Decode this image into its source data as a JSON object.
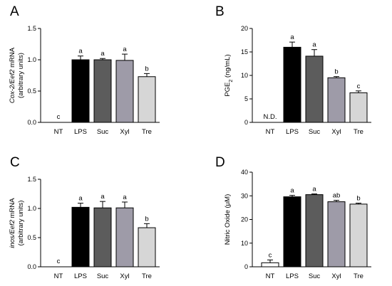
{
  "chart_data": [
    {
      "type": "bar",
      "panel": "A",
      "ylabel_parts": [
        {
          "text": "Cox-2/Eef2",
          "italic": true
        },
        {
          "text": " mRNA",
          "italic": false
        }
      ],
      "ylabel_line2": "(arbitrary units)",
      "categories": [
        "NT",
        "LPS",
        "Suc",
        "Xyl",
        "Tre"
      ],
      "values": [
        0,
        1.0,
        1.0,
        0.99,
        0.73
      ],
      "errors": [
        0,
        0.06,
        0.02,
        0.1,
        0.05
      ],
      "labels": [
        "c",
        "a",
        "a",
        "a",
        "b"
      ],
      "ylim": [
        0,
        1.5
      ],
      "yticks": [
        "0.0",
        "0.5",
        "1.0",
        "1.5"
      ],
      "ytick_values": [
        0,
        0.5,
        1.0,
        1.5
      ],
      "colors": [
        "#ffffff",
        "#000000",
        "#5c5c5c",
        "#9e9ba8",
        "#d6d6d6"
      ]
    },
    {
      "type": "bar",
      "panel": "B",
      "ylabel_parts": [
        {
          "text": "PGE",
          "italic": false
        },
        {
          "text": "2",
          "italic": false,
          "sub": true
        },
        {
          "text": " (ng/mL)",
          "italic": false
        }
      ],
      "ylabel_line2": "",
      "categories": [
        "NT",
        "LPS",
        "Suc",
        "Xyl",
        "Tre"
      ],
      "values": [
        0,
        16.0,
        14.1,
        9.5,
        6.3
      ],
      "errors": [
        0,
        1.1,
        1.4,
        0.25,
        0.4
      ],
      "labels": [
        "N.D.",
        "a",
        "a",
        "b",
        "c"
      ],
      "ylim": [
        0,
        20
      ],
      "yticks": [
        "0",
        "5",
        "10",
        "15",
        "20"
      ],
      "ytick_values": [
        0,
        5,
        10,
        15,
        20
      ],
      "colors": [
        "#ffffff",
        "#000000",
        "#5c5c5c",
        "#9e9ba8",
        "#d6d6d6"
      ]
    },
    {
      "type": "bar",
      "panel": "C",
      "ylabel_parts": [
        {
          "text": "inos/Eef2",
          "italic": true
        },
        {
          "text": " mRNA",
          "italic": false
        }
      ],
      "ylabel_line2": "(arbitrary units)",
      "categories": [
        "NT",
        "LPS",
        "Suc",
        "Xyl",
        "Tre"
      ],
      "values": [
        0,
        1.02,
        1.01,
        1.01,
        0.67
      ],
      "errors": [
        0,
        0.07,
        0.11,
        0.1,
        0.07
      ],
      "labels": [
        "c",
        "a",
        "a",
        "a",
        "b"
      ],
      "ylim": [
        0,
        1.5
      ],
      "yticks": [
        "0.0",
        "0.5",
        "1.0",
        "1.5"
      ],
      "ytick_values": [
        0,
        0.5,
        1.0,
        1.5
      ],
      "colors": [
        "#ffffff",
        "#000000",
        "#5c5c5c",
        "#9e9ba8",
        "#d6d6d6"
      ]
    },
    {
      "type": "bar",
      "panel": "D",
      "ylabel_parts": [
        {
          "text": "Nitric Oxide (",
          "italic": false
        },
        {
          "text": "μ",
          "italic": false
        },
        {
          "text": "M)",
          "italic": false
        }
      ],
      "ylabel_line2": "",
      "categories": [
        "NT",
        "LPS",
        "Suc",
        "Xyl",
        "Tre"
      ],
      "values": [
        1.7,
        29.6,
        30.5,
        27.5,
        26.5
      ],
      "errors": [
        1.2,
        0.6,
        0.3,
        0.6,
        0.4
      ],
      "labels": [
        "c",
        "a",
        "a",
        "ab",
        "b"
      ],
      "ylim": [
        0,
        40
      ],
      "yticks": [
        "0",
        "10",
        "20",
        "30",
        "40"
      ],
      "ytick_values": [
        0,
        10,
        20,
        30,
        40
      ],
      "colors": [
        "#ffffff",
        "#000000",
        "#5c5c5c",
        "#9e9ba8",
        "#d6d6d6"
      ]
    }
  ]
}
